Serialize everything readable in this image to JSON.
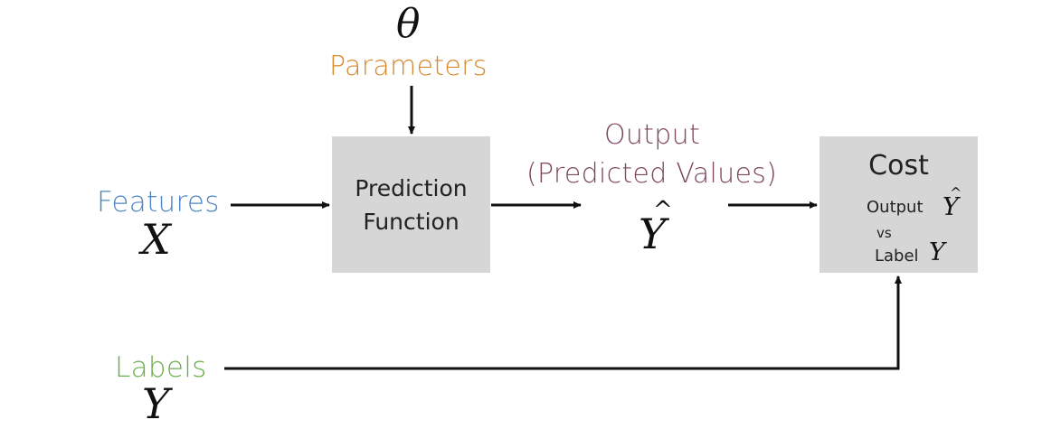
{
  "parameters": {
    "symbol": "θ",
    "label": "Parameters",
    "color": "#d6892f"
  },
  "features": {
    "label": "Features",
    "symbol": "X",
    "color": "#4f86c0"
  },
  "labels": {
    "label": "Labels",
    "symbol": "Y",
    "color": "#6cad4c"
  },
  "prediction_function": {
    "line1": "Prediction",
    "line2": "Function"
  },
  "output": {
    "line1": "Output",
    "line2": "(Predicted Values)",
    "symbol": "Y",
    "hat": "^",
    "color": "#7d4760"
  },
  "cost": {
    "title": "Cost",
    "output_word": "Output",
    "output_symbol": "Y",
    "output_hat": "^",
    "vs": "vs",
    "label_word": "Label",
    "label_symbol": "Y"
  }
}
